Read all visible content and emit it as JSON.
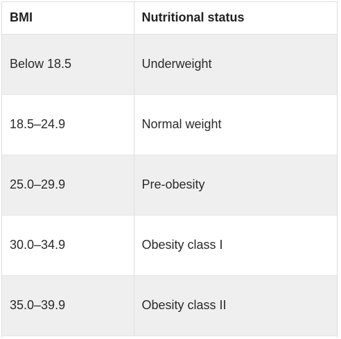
{
  "table": {
    "headers": [
      "BMI",
      "Nutritional status"
    ],
    "rows": [
      [
        "Below 18.5",
        "Underweight"
      ],
      [
        "18.5–24.9",
        "Normal weight"
      ],
      [
        "25.0–29.9",
        "Pre-obesity"
      ],
      [
        "30.0–34.9",
        "Obesity class I"
      ],
      [
        "35.0–39.9",
        "Obesity class II"
      ]
    ]
  },
  "colors": {
    "shaded_row": "#efefef",
    "plain_row": "#ffffff",
    "border": "#dcdcdc",
    "text": "#222222"
  }
}
